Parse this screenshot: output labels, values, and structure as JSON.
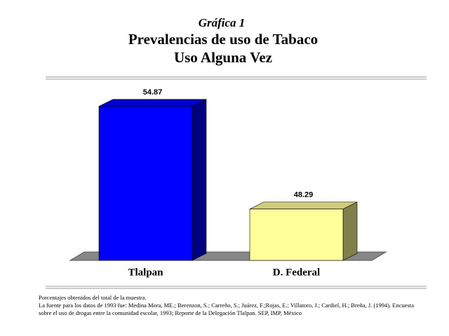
{
  "chart_data": {
    "type": "bar3d",
    "title": "Gráfica 1",
    "subtitle": [
      "Prevalencias de uso de Tabaco",
      "Uso Alguna Vez"
    ],
    "categories": [
      "Tlalpan",
      "D. Federal"
    ],
    "values": [
      54.87,
      48.29
    ],
    "colors": [
      "#0000ff",
      "#ffff99"
    ],
    "ylim": [
      45,
      55
    ],
    "notes": [
      "Porcentajes obtenidos del total de la muestra.",
      "La fuente para los datos de 1993 fue: Medina Mora, ME.; Berenzon, S.; Carreño, S.; Juárez, F.;Rojas, E.; Villatoro, J.; Cardiel, H.; Breña, J. (1994). Encuesta",
      "sobre el uso de drogas entre la comunidad escolar, 1993; Reporte de la Delegación Tlalpan. SEP, IMP, México"
    ]
  }
}
